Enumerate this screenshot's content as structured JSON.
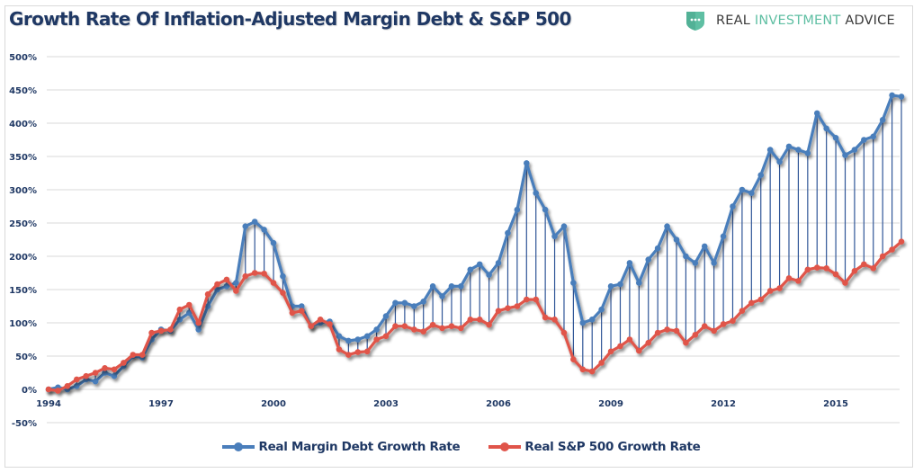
{
  "header": {
    "title": "Growth Rate Of Inflation-Adjusted Margin Debt & S&P 500",
    "brand": {
      "word1": "REAL",
      "word2": "INVESTMENT",
      "word3": "ADVICE",
      "icon": "shield-dots-icon",
      "accent": "#5fbfa3"
    }
  },
  "chart_data": {
    "type": "line",
    "title": "Growth Rate Of Inflation-Adjusted Margin Debt & S&P 500",
    "xlabel": "",
    "ylabel": "",
    "x_start": 1994,
    "x_step": 0.25,
    "xlim": [
      1994,
      2016.75
    ],
    "ylim": [
      -50,
      500
    ],
    "y_ticks": [
      -50,
      0,
      50,
      100,
      150,
      200,
      250,
      300,
      350,
      400,
      450,
      500
    ],
    "y_tick_labels": [
      "-50%",
      "0%",
      "50%",
      "100%",
      "150%",
      "200%",
      "250%",
      "300%",
      "350%",
      "400%",
      "450%",
      "500%"
    ],
    "x_ticks": [
      1994,
      1997,
      2000,
      2003,
      2006,
      2009,
      2012,
      2015
    ],
    "x_tick_labels": [
      "1994",
      "1997",
      "2000",
      "2003",
      "2006",
      "2009",
      "2012",
      "2015"
    ],
    "grid": true,
    "drop_lines": true,
    "legend_position": "bottom",
    "series": [
      {
        "name": "Real Margin Debt Growth Rate",
        "color": "#4a7ebb",
        "values": [
          0,
          3,
          0,
          5,
          15,
          12,
          25,
          20,
          35,
          50,
          48,
          75,
          90,
          88,
          105,
          115,
          90,
          125,
          150,
          155,
          160,
          245,
          252,
          240,
          220,
          170,
          125,
          125,
          95,
          100,
          102,
          80,
          73,
          75,
          80,
          90,
          110,
          130,
          130,
          125,
          132,
          155,
          140,
          155,
          155,
          180,
          188,
          172,
          190,
          235,
          270,
          340,
          295,
          270,
          230,
          245,
          160,
          100,
          105,
          120,
          155,
          158,
          190,
          160,
          195,
          212,
          245,
          225,
          200,
          190,
          215,
          190,
          230,
          275,
          300,
          295,
          322,
          360,
          342,
          365,
          360,
          355,
          415,
          392,
          378,
          352,
          360,
          375,
          380,
          405,
          442,
          440
        ]
      },
      {
        "name": "Real S&P 500 Growth Rate",
        "color": "#e0544a",
        "values": [
          0,
          -2,
          5,
          15,
          20,
          25,
          32,
          30,
          40,
          52,
          52,
          85,
          88,
          90,
          120,
          127,
          100,
          143,
          158,
          165,
          148,
          170,
          175,
          174,
          160,
          145,
          115,
          118,
          95,
          105,
          98,
          60,
          52,
          56,
          57,
          75,
          80,
          95,
          95,
          90,
          87,
          97,
          92,
          95,
          92,
          105,
          105,
          97,
          118,
          122,
          125,
          135,
          135,
          108,
          105,
          85,
          45,
          30,
          27,
          40,
          57,
          65,
          75,
          58,
          70,
          85,
          90,
          88,
          70,
          82,
          95,
          88,
          98,
          103,
          118,
          130,
          135,
          148,
          152,
          167,
          163,
          180,
          183,
          182,
          173,
          160,
          178,
          188,
          182,
          200,
          210,
          222
        ]
      }
    ]
  }
}
